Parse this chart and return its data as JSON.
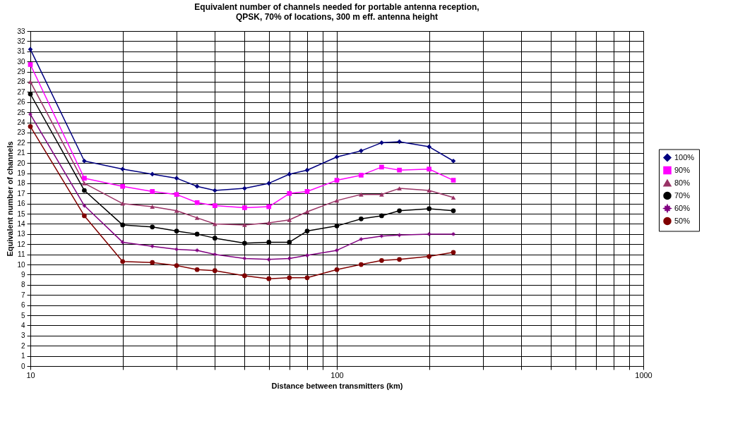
{
  "chart_data": {
    "type": "line",
    "title": "Equivalent number of channels needed for portable antenna reception,\nQPSK, 70% of locations, 300 m eff. antenna height",
    "xlabel": "Distance between transmitters (km)",
    "ylabel": "Equivalent number of channels",
    "x": [
      10,
      15,
      20,
      25,
      30,
      35,
      40,
      50,
      60,
      70,
      80,
      100,
      120,
      140,
      160,
      200,
      240
    ],
    "series": [
      {
        "name": "100%",
        "color": "#000080",
        "marker": "diamond",
        "values": [
          31.2,
          20.2,
          19.4,
          18.9,
          18.5,
          17.7,
          17.3,
          17.5,
          18.0,
          18.9,
          19.3,
          20.6,
          21.2,
          22.0,
          22.1,
          21.6,
          20.2
        ]
      },
      {
        "name": "90%",
        "color": "#ff00ff",
        "marker": "square",
        "values": [
          29.7,
          18.5,
          17.7,
          17.2,
          16.9,
          16.1,
          15.8,
          15.6,
          15.7,
          17.0,
          17.2,
          18.3,
          18.8,
          19.6,
          19.3,
          19.4,
          18.3
        ]
      },
      {
        "name": "80%",
        "color": "#993366",
        "marker": "triangle",
        "values": [
          28.0,
          18.0,
          16.0,
          15.7,
          15.3,
          14.6,
          14.0,
          13.9,
          14.1,
          14.4,
          15.2,
          16.3,
          16.9,
          16.9,
          17.5,
          17.3,
          16.6
        ]
      },
      {
        "name": "70%",
        "color": "#000000",
        "marker": "circle",
        "values": [
          26.8,
          17.3,
          13.9,
          13.7,
          13.3,
          13.0,
          12.6,
          12.1,
          12.2,
          12.2,
          13.3,
          13.8,
          14.5,
          14.8,
          15.3,
          15.5,
          15.3
        ]
      },
      {
        "name": "60%",
        "color": "#800080",
        "marker": "star",
        "values": [
          24.8,
          15.8,
          12.2,
          11.8,
          11.5,
          11.4,
          11.0,
          10.6,
          10.5,
          10.6,
          10.9,
          11.4,
          12.5,
          12.8,
          12.9,
          13.0,
          13.0
        ]
      },
      {
        "name": "50%",
        "color": "#800000",
        "marker": "circle",
        "values": [
          23.6,
          14.8,
          10.3,
          10.2,
          9.9,
          9.5,
          9.4,
          8.9,
          8.6,
          8.7,
          8.7,
          9.5,
          10.0,
          10.4,
          10.5,
          10.8,
          11.2
        ]
      }
    ],
    "log": "x",
    "xlim": [
      10,
      1000
    ],
    "xticks": [
      10,
      {
        "value": 20,
        "label": null
      },
      {
        "value": 30,
        "label": null
      },
      {
        "value": 40,
        "label": null
      },
      {
        "value": 50,
        "label": null
      },
      {
        "value": 60,
        "label": null
      },
      {
        "value": 70,
        "label": null
      },
      {
        "value": 80,
        "label": null
      },
      {
        "value": 90,
        "label": null
      },
      100,
      {
        "value": 200,
        "label": null
      },
      {
        "value": 300,
        "label": null
      },
      {
        "value": 400,
        "label": null
      },
      {
        "value": 500,
        "label": null
      },
      {
        "value": 600,
        "label": null
      },
      {
        "value": 700,
        "label": null
      },
      {
        "value": 800,
        "label": null
      },
      {
        "value": 900,
        "label": null
      },
      1000
    ],
    "ylim": [
      0,
      33
    ],
    "yticks": [
      0,
      1,
      2,
      3,
      4,
      5,
      6,
      7,
      8,
      9,
      10,
      11,
      12,
      13,
      14,
      15,
      16,
      17,
      18,
      19,
      20,
      21,
      22,
      23,
      24,
      25,
      26,
      27,
      28,
      29,
      30,
      31,
      32,
      33
    ],
    "grid": true,
    "legend": "right",
    "line_style": "solid"
  }
}
